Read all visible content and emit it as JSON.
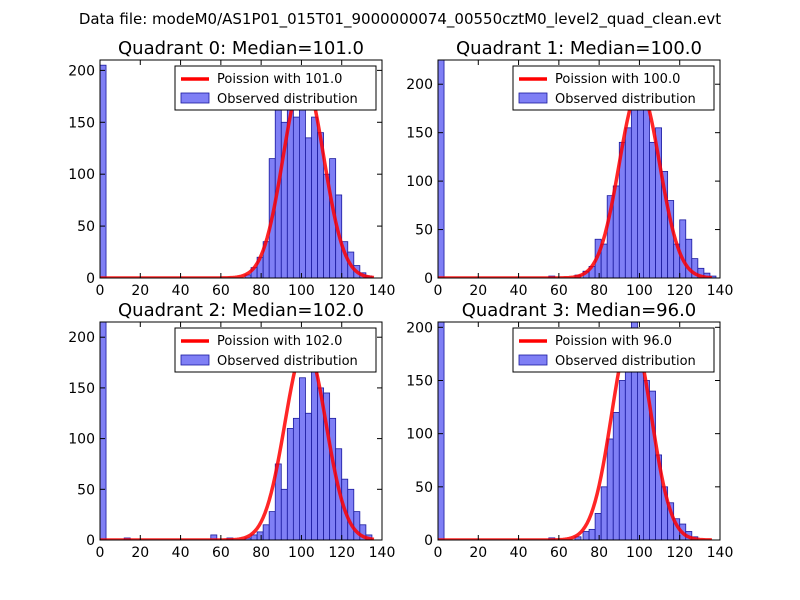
{
  "chart_data": {
    "type": "bar",
    "suptitle": "Data file: modeM0/AS1P01_015T01_9000000074_00550cztM0_level2_quad_clean.evt",
    "panels": [
      {
        "title": "Quadrant 0: Median=101.0",
        "xlim": [
          0,
          140
        ],
        "ylim": [
          0,
          210
        ],
        "xticks": [
          0,
          20,
          40,
          60,
          80,
          100,
          120,
          140
        ],
        "yticks": [
          0,
          50,
          100,
          150,
          200
        ],
        "legend": {
          "location": "upper right",
          "fit_label": "Poission with 101.0",
          "hist_label": "Observed distribution"
        },
        "fit_series": {
          "name": "Poission with 101.0",
          "mu": 101.0,
          "peak": 193
        },
        "hist_series": {
          "name": "Observed distribution",
          "bins": [
            {
              "x": 0,
              "count": 205
            },
            {
              "x": 72,
              "count": 3
            },
            {
              "x": 75,
              "count": 10
            },
            {
              "x": 78,
              "count": 20
            },
            {
              "x": 81,
              "count": 35
            },
            {
              "x": 84,
              "count": 115
            },
            {
              "x": 87,
              "count": 180
            },
            {
              "x": 90,
              "count": 150
            },
            {
              "x": 93,
              "count": 185
            },
            {
              "x": 96,
              "count": 155
            },
            {
              "x": 99,
              "count": 200
            },
            {
              "x": 102,
              "count": 135
            },
            {
              "x": 105,
              "count": 155
            },
            {
              "x": 108,
              "count": 140
            },
            {
              "x": 111,
              "count": 100
            },
            {
              "x": 114,
              "count": 115
            },
            {
              "x": 117,
              "count": 80
            },
            {
              "x": 120,
              "count": 35
            },
            {
              "x": 123,
              "count": 25
            },
            {
              "x": 126,
              "count": 12
            },
            {
              "x": 129,
              "count": 5
            },
            {
              "x": 132,
              "count": 2
            }
          ]
        }
      },
      {
        "title": "Quadrant 1: Median=100.0",
        "xlim": [
          0,
          140
        ],
        "ylim": [
          0,
          225
        ],
        "xticks": [
          0,
          20,
          40,
          60,
          80,
          100,
          120,
          140
        ],
        "yticks": [
          0,
          50,
          100,
          150,
          200
        ],
        "legend": {
          "location": "upper right",
          "fit_label": "Poission with 100.0",
          "hist_label": "Observed distribution"
        },
        "fit_series": {
          "name": "Poission with 100.0",
          "mu": 100.0,
          "peak": 195
        },
        "hist_series": {
          "name": "Observed distribution",
          "bins": [
            {
              "x": 0,
              "count": 225
            },
            {
              "x": 55,
              "count": 2
            },
            {
              "x": 68,
              "count": 3
            },
            {
              "x": 72,
              "count": 7
            },
            {
              "x": 75,
              "count": 12
            },
            {
              "x": 78,
              "count": 40
            },
            {
              "x": 81,
              "count": 35
            },
            {
              "x": 84,
              "count": 85
            },
            {
              "x": 87,
              "count": 95
            },
            {
              "x": 90,
              "count": 140
            },
            {
              "x": 93,
              "count": 155
            },
            {
              "x": 96,
              "count": 195
            },
            {
              "x": 99,
              "count": 190
            },
            {
              "x": 102,
              "count": 175
            },
            {
              "x": 105,
              "count": 140
            },
            {
              "x": 108,
              "count": 155
            },
            {
              "x": 111,
              "count": 110
            },
            {
              "x": 114,
              "count": 80
            },
            {
              "x": 117,
              "count": 35
            },
            {
              "x": 120,
              "count": 60
            },
            {
              "x": 123,
              "count": 40
            },
            {
              "x": 126,
              "count": 20
            },
            {
              "x": 129,
              "count": 10
            },
            {
              "x": 132,
              "count": 5
            },
            {
              "x": 135,
              "count": 2
            }
          ]
        }
      },
      {
        "title": "Quadrant 2: Median=102.0",
        "xlim": [
          0,
          140
        ],
        "ylim": [
          0,
          215
        ],
        "xticks": [
          0,
          20,
          40,
          60,
          80,
          100,
          120,
          140
        ],
        "yticks": [
          0,
          50,
          100,
          150,
          200
        ],
        "legend": {
          "location": "upper right",
          "fit_label": "Poission with 102.0",
          "hist_label": "Observed distribution"
        },
        "fit_series": {
          "name": "Poission with 102.0",
          "mu": 102.0,
          "peak": 192
        },
        "hist_series": {
          "name": "Observed distribution",
          "bins": [
            {
              "x": 0,
              "count": 215
            },
            {
              "x": 12,
              "count": 2
            },
            {
              "x": 55,
              "count": 5
            },
            {
              "x": 63,
              "count": 2
            },
            {
              "x": 72,
              "count": 2
            },
            {
              "x": 75,
              "count": 5
            },
            {
              "x": 78,
              "count": 8
            },
            {
              "x": 81,
              "count": 15
            },
            {
              "x": 84,
              "count": 28
            },
            {
              "x": 87,
              "count": 75
            },
            {
              "x": 90,
              "count": 50
            },
            {
              "x": 93,
              "count": 110
            },
            {
              "x": 96,
              "count": 120
            },
            {
              "x": 99,
              "count": 160
            },
            {
              "x": 102,
              "count": 125
            },
            {
              "x": 105,
              "count": 200
            },
            {
              "x": 108,
              "count": 150
            },
            {
              "x": 111,
              "count": 145
            },
            {
              "x": 114,
              "count": 120
            },
            {
              "x": 117,
              "count": 90
            },
            {
              "x": 120,
              "count": 60
            },
            {
              "x": 123,
              "count": 50
            },
            {
              "x": 126,
              "count": 28
            },
            {
              "x": 129,
              "count": 15
            },
            {
              "x": 132,
              "count": 5
            }
          ]
        }
      },
      {
        "title": "Quadrant 3: Median=96.0",
        "xlim": [
          0,
          140
        ],
        "ylim": [
          0,
          205
        ],
        "xticks": [
          0,
          20,
          40,
          60,
          80,
          100,
          120,
          140
        ],
        "yticks": [
          0,
          50,
          100,
          150,
          200
        ],
        "legend": {
          "location": "upper right",
          "fit_label": "Poission with 96.0",
          "hist_label": "Observed distribution"
        },
        "fit_series": {
          "name": "Poission with 96.0",
          "mu": 96.0,
          "peak": 195
        },
        "hist_series": {
          "name": "Observed distribution",
          "bins": [
            {
              "x": 0,
              "count": 205
            },
            {
              "x": 55,
              "count": 2
            },
            {
              "x": 68,
              "count": 3
            },
            {
              "x": 72,
              "count": 8
            },
            {
              "x": 75,
              "count": 10
            },
            {
              "x": 78,
              "count": 25
            },
            {
              "x": 81,
              "count": 50
            },
            {
              "x": 84,
              "count": 95
            },
            {
              "x": 87,
              "count": 120
            },
            {
              "x": 90,
              "count": 150
            },
            {
              "x": 93,
              "count": 170
            },
            {
              "x": 96,
              "count": 205
            },
            {
              "x": 99,
              "count": 180
            },
            {
              "x": 102,
              "count": 150
            },
            {
              "x": 105,
              "count": 140
            },
            {
              "x": 108,
              "count": 80
            },
            {
              "x": 111,
              "count": 50
            },
            {
              "x": 114,
              "count": 35
            },
            {
              "x": 117,
              "count": 20
            },
            {
              "x": 120,
              "count": 15
            },
            {
              "x": 123,
              "count": 8
            },
            {
              "x": 126,
              "count": 3
            }
          ]
        }
      }
    ]
  },
  "colors": {
    "hist_fill": "#7f7ff5",
    "hist_edge": "#1a1a9e",
    "fit_line": "#ff0000",
    "axes": "#000000"
  }
}
